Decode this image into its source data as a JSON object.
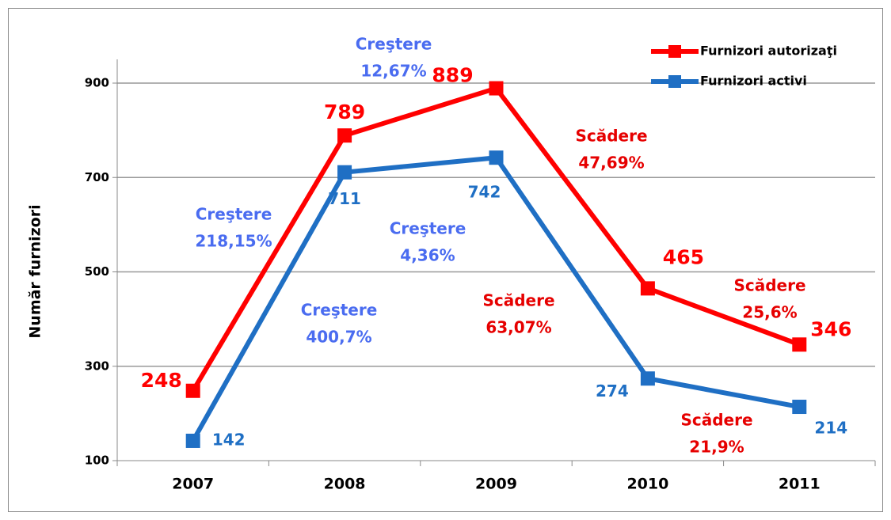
{
  "chart_data": {
    "type": "line",
    "categories": [
      "2007",
      "2008",
      "2009",
      "2010",
      "2011"
    ],
    "series": [
      {
        "name": "Furnizori autorizaţi",
        "color": "#ff0000",
        "values": [
          248,
          789,
          889,
          465,
          346
        ]
      },
      {
        "name": "Furnizori activi",
        "color": "#1f6fc4",
        "values": [
          142,
          711,
          742,
          274,
          214
        ]
      }
    ],
    "ylabel": "Număr furnizori",
    "ylim": [
      100,
      900
    ],
    "yticks": [
      100,
      300,
      500,
      700,
      900
    ],
    "grid": true,
    "legend": "top-right",
    "annotations": [
      {
        "lines": [
          "Creştere",
          "12,67%"
        ],
        "color": "#4a6cf0"
      },
      {
        "lines": [
          "Creştere",
          "218,15%"
        ],
        "color": "#4a6cf0"
      },
      {
        "lines": [
          "Creştere",
          "4,36%"
        ],
        "color": "#4a6cf0"
      },
      {
        "lines": [
          "Creştere",
          "400,7%"
        ],
        "color": "#4a6cf0"
      },
      {
        "lines": [
          "Scădere",
          "63,07%"
        ],
        "color": "#e60000"
      },
      {
        "lines": [
          "Scădere",
          "47,69%"
        ],
        "color": "#e60000"
      },
      {
        "lines": [
          "Scădere",
          "25,6%"
        ],
        "color": "#e60000"
      },
      {
        "lines": [
          "Scădere",
          "21,9%"
        ],
        "color": "#e60000"
      }
    ]
  }
}
